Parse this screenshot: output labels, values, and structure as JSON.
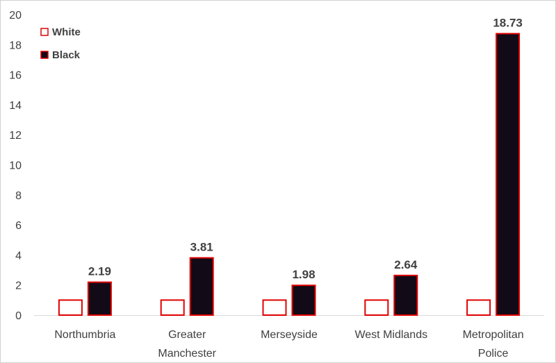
{
  "chart_data": {
    "type": "bar",
    "categories": [
      [
        "Northumbria"
      ],
      [
        "Greater",
        "Manchester"
      ],
      [
        "Merseyside"
      ],
      [
        "West Midlands"
      ],
      [
        "Metropolitan",
        "Police"
      ]
    ],
    "series": [
      {
        "name": "White",
        "values": [
          1,
          1,
          1,
          1,
          1
        ],
        "fill": "#ffffff",
        "stroke": "#e00000",
        "show_labels": false
      },
      {
        "name": "Black",
        "values": [
          2.19,
          3.81,
          1.98,
          2.64,
          18.73
        ],
        "fill": "#120a17",
        "stroke": "#e00000",
        "show_labels": true
      }
    ],
    "data_labels": [
      "2.19",
      "3.81",
      "1.98",
      "2.64",
      "18.73"
    ],
    "ylim": [
      0,
      20
    ],
    "yticks": [
      0,
      2,
      4,
      6,
      8,
      10,
      12,
      14,
      16,
      18,
      20
    ],
    "grid": false,
    "legend": "top-left",
    "title": "",
    "xlabel": "",
    "ylabel": ""
  }
}
